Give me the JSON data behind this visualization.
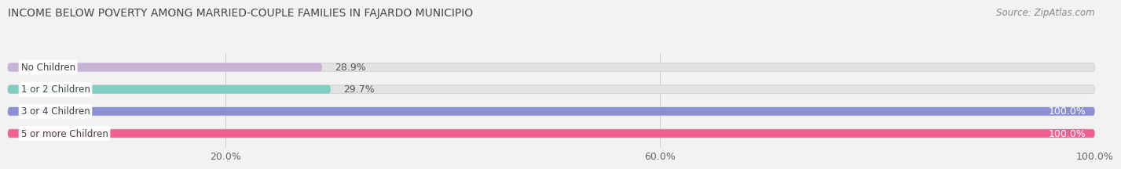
{
  "title": "INCOME BELOW POVERTY AMONG MARRIED-COUPLE FAMILIES IN FAJARDO MUNICIPIO",
  "source": "Source: ZipAtlas.com",
  "categories": [
    "No Children",
    "1 or 2 Children",
    "3 or 4 Children",
    "5 or more Children"
  ],
  "values": [
    28.9,
    29.7,
    100.0,
    100.0
  ],
  "bar_colors": [
    "#c9b3d5",
    "#7ecdc3",
    "#8b8fd4",
    "#f06090"
  ],
  "bg_color": "#f2f2f2",
  "bar_bg_color": "#e2e2e2",
  "bar_bg_edge_color": "#d5d5d5",
  "xlim": [
    0,
    100
  ],
  "xticks": [
    20.0,
    60.0,
    100.0
  ],
  "xticklabels": [
    "20.0%",
    "60.0%",
    "100.0%"
  ],
  "title_fontsize": 10,
  "source_fontsize": 8.5,
  "bar_label_fontsize": 9,
  "tick_fontsize": 9,
  "cat_label_fontsize": 8.5,
  "value_label_threshold": 50
}
